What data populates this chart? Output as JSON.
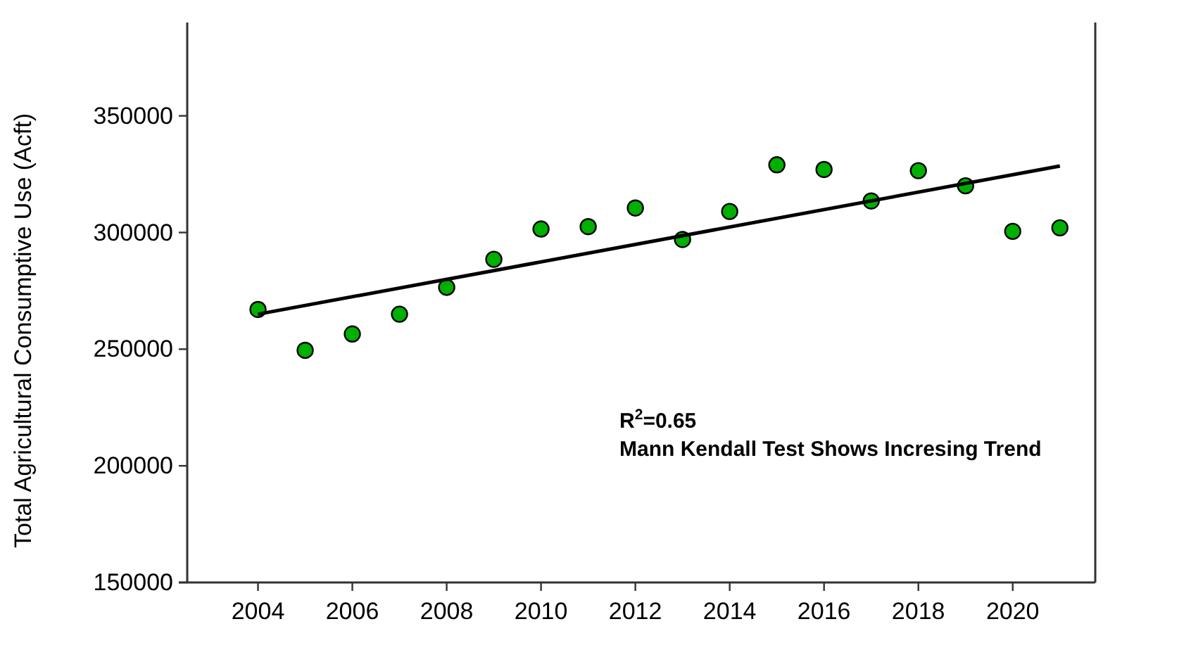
{
  "chart_data": {
    "type": "scatter",
    "ylabel": "Total Agricultural Consumptive Use (Acft)",
    "annotations": [
      "R$^{2}$=0.65",
      "Mann Kendall Test Shows Incresing Trend"
    ],
    "x": [
      2004,
      2005,
      2006,
      2007,
      2008,
      2009,
      2010,
      2011,
      2012,
      2013,
      2014,
      2015,
      2016,
      2017,
      2018,
      2019,
      2020,
      2021
    ],
    "series": [
      {
        "color": "#00b000",
        "marker": "circle",
        "values": [
          267000,
          249500,
          256500,
          265000,
          276500,
          288500,
          301500,
          302500,
          310500,
          297000,
          309000,
          329000,
          327000,
          313500,
          326500,
          320000,
          300500,
          302000
        ]
      },
      {
        "type": "line",
        "color": "#000000",
        "marker": "none",
        "line_style": "solid",
        "x": [
          2004,
          2021
        ],
        "values": [
          265000,
          328500
        ]
      }
    ],
    "xlim": [
      2002.5,
      2021.75
    ],
    "ylim": [
      150000,
      390000
    ],
    "xticks": [
      2004,
      2006,
      2008,
      2010,
      2012,
      2014,
      2016,
      2018,
      2020
    ],
    "yticks": [
      150000,
      200000,
      250000,
      300000,
      350000
    ],
    "grid": false
  }
}
